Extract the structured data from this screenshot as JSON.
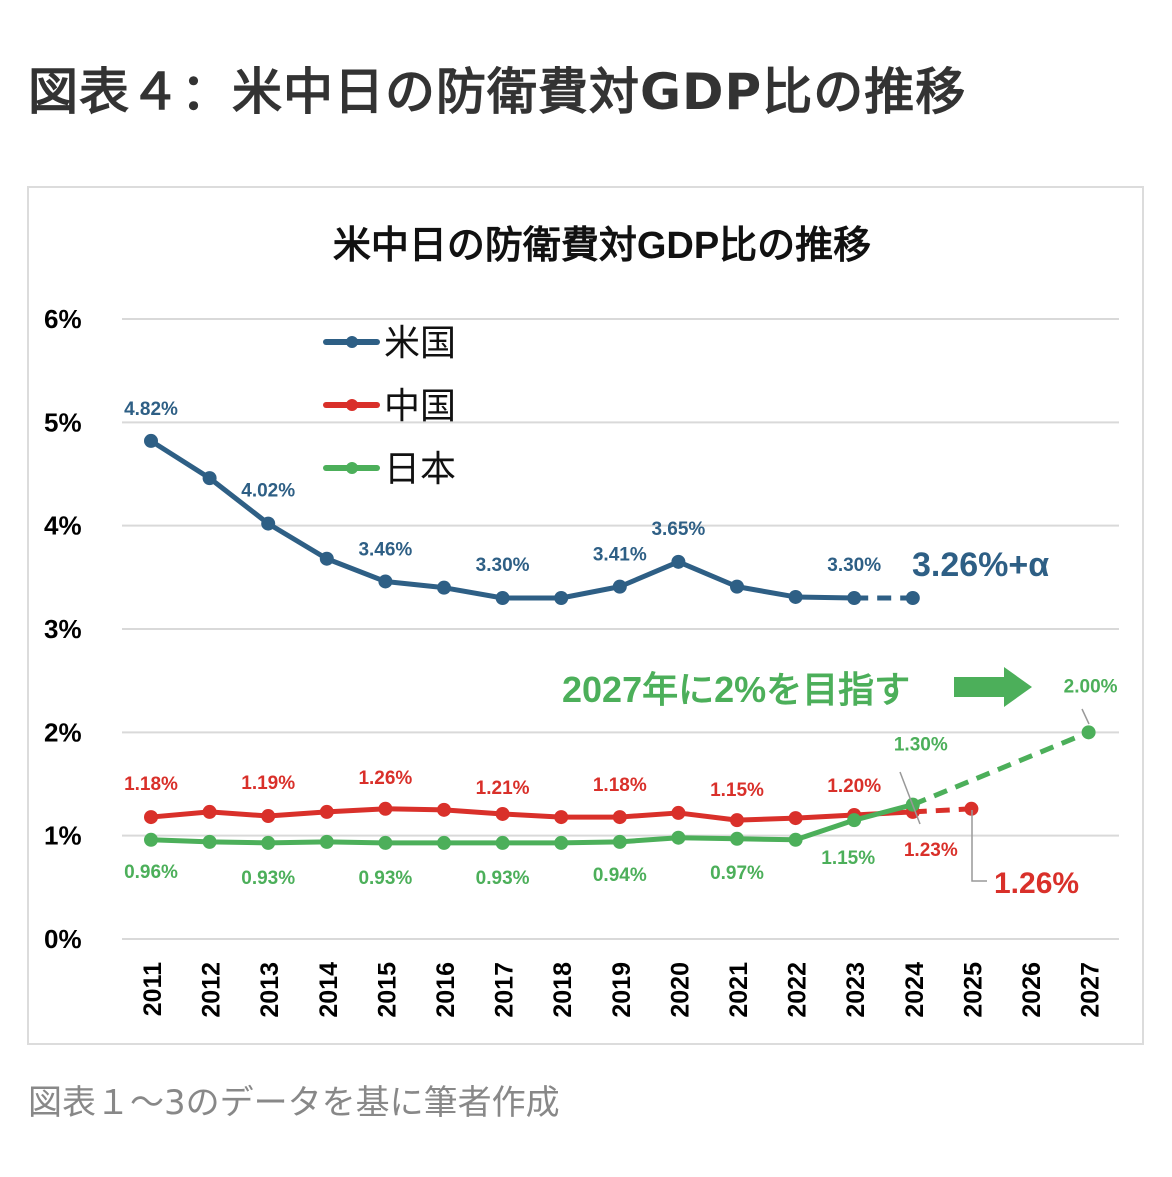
{
  "page": {
    "title": "図表４：米中日の防衛費対GDP比の推移",
    "caption": "図表１～3のデータを基に筆者作成"
  },
  "colors": {
    "us": "#2E5F85",
    "china": "#D9302A",
    "japan": "#4CAF5A",
    "grid": "#d9d9d9",
    "axis_text": "#000000"
  },
  "chart_data": {
    "type": "line",
    "title": "米中日の防衛費対GDP比の推移",
    "xlabel": "",
    "ylabel": "",
    "categories": [
      "2011",
      "2012",
      "2013",
      "2014",
      "2015",
      "2016",
      "2017",
      "2018",
      "2019",
      "2020",
      "2021",
      "2022",
      "2023",
      "2024",
      "2025",
      "2026",
      "2027"
    ],
    "ylim": [
      0,
      6
    ],
    "yticks": [
      0,
      1,
      2,
      3,
      4,
      5,
      6
    ],
    "ytick_labels": [
      "0%",
      "1%",
      "2%",
      "3%",
      "4%",
      "5%",
      "6%"
    ],
    "grid": true,
    "legend_position": "top-left",
    "series": [
      {
        "key": "us",
        "name": "米国",
        "values": [
          4.82,
          4.46,
          4.02,
          3.68,
          3.46,
          3.4,
          3.3,
          3.3,
          3.41,
          3.65,
          3.41,
          3.31,
          3.3,
          3.3,
          null,
          null,
          null
        ],
        "solid_until": "2023",
        "dashed_segment": [
          "2023",
          "2024"
        ],
        "labels": [
          {
            "year": "2011",
            "text": "4.82%"
          },
          {
            "year": "2013",
            "text": "4.02%"
          },
          {
            "year": "2015",
            "text": "3.46%"
          },
          {
            "year": "2017",
            "text": "3.30%"
          },
          {
            "year": "2019",
            "text": "3.41%"
          },
          {
            "year": "2020",
            "text": "3.65%"
          },
          {
            "year": "2023",
            "text": "3.30%"
          }
        ]
      },
      {
        "key": "china",
        "name": "中国",
        "values": [
          1.18,
          1.23,
          1.19,
          1.23,
          1.26,
          1.25,
          1.21,
          1.18,
          1.18,
          1.22,
          1.15,
          1.17,
          1.2,
          1.23,
          1.26,
          null,
          null
        ],
        "solid_until": "2024",
        "dashed_segment": [
          "2024",
          "2025"
        ],
        "labels": [
          {
            "year": "2011",
            "text": "1.18%"
          },
          {
            "year": "2013",
            "text": "1.19%"
          },
          {
            "year": "2015",
            "text": "1.26%"
          },
          {
            "year": "2017",
            "text": "1.21%"
          },
          {
            "year": "2019",
            "text": "1.18%"
          },
          {
            "year": "2021",
            "text": "1.15%"
          },
          {
            "year": "2023",
            "text": "1.20%"
          },
          {
            "year": "2024",
            "text": "1.23%"
          }
        ]
      },
      {
        "key": "japan",
        "name": "日本",
        "values": [
          0.96,
          0.94,
          0.93,
          0.94,
          0.93,
          0.93,
          0.93,
          0.93,
          0.94,
          0.98,
          0.97,
          0.96,
          1.15,
          1.3,
          null,
          null,
          2.0
        ],
        "solid_until": "2024",
        "dashed_segment": [
          "2024",
          "2027"
        ],
        "labels": [
          {
            "year": "2011",
            "text": "0.96%"
          },
          {
            "year": "2013",
            "text": "0.93%"
          },
          {
            "year": "2015",
            "text": "0.93%"
          },
          {
            "year": "2017",
            "text": "0.93%"
          },
          {
            "year": "2019",
            "text": "0.94%"
          },
          {
            "year": "2021",
            "text": "0.97%"
          },
          {
            "year": "2023",
            "text": "1.15%"
          },
          {
            "year": "2024",
            "text": "1.30%"
          },
          {
            "year": "2027",
            "text": "2.00%"
          }
        ]
      }
    ],
    "annotations": [
      {
        "key": "us_projection",
        "text": "3.26%+α",
        "series": "us",
        "year": "2024"
      },
      {
        "key": "china_projection",
        "text": "1.26%",
        "series": "china",
        "year": "2025"
      },
      {
        "key": "japan_target",
        "text": "2027年に2%を目指す",
        "series": "japan",
        "year": "2027",
        "arrow": true
      }
    ]
  }
}
